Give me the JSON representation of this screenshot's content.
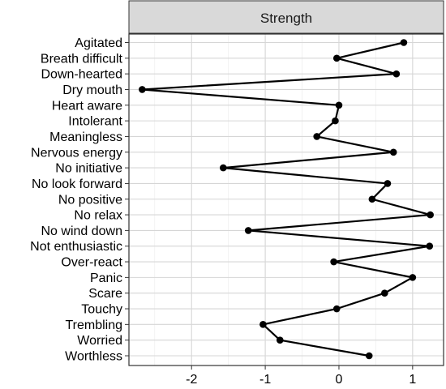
{
  "chart_data": {
    "type": "line",
    "strip_label": "Strength",
    "xlabel": "",
    "ylabel": "",
    "xlim": [
      -2.85,
      1.42
    ],
    "x_ticks": [
      -2,
      -1,
      0,
      1
    ],
    "x_tick_labels": [
      "-2",
      "-1",
      "0",
      "1"
    ],
    "grid": true,
    "categories": [
      "Agitated",
      "Breath difficult",
      "Down-hearted",
      "Dry mouth",
      "Heart aware",
      "Intolerant",
      "Meaningless",
      "Nervous energy",
      "No initiative",
      "No look forward",
      "No positive",
      "No relax",
      "No wind down",
      "Not enthusiastic",
      "Over-react",
      "Panic",
      "Scare",
      "Touchy",
      "Trembling",
      "Worried",
      "Worthless"
    ],
    "values": [
      0.88,
      -0.03,
      0.78,
      -2.67,
      0.0,
      -0.05,
      -0.3,
      0.74,
      -1.57,
      0.66,
      0.45,
      1.24,
      -1.23,
      1.23,
      -0.07,
      1.0,
      0.62,
      -0.03,
      -1.03,
      -0.8,
      0.41
    ],
    "colors": {
      "line": "#000000",
      "strip": "#d9d9d9",
      "grid": "#d6d6d6"
    }
  }
}
